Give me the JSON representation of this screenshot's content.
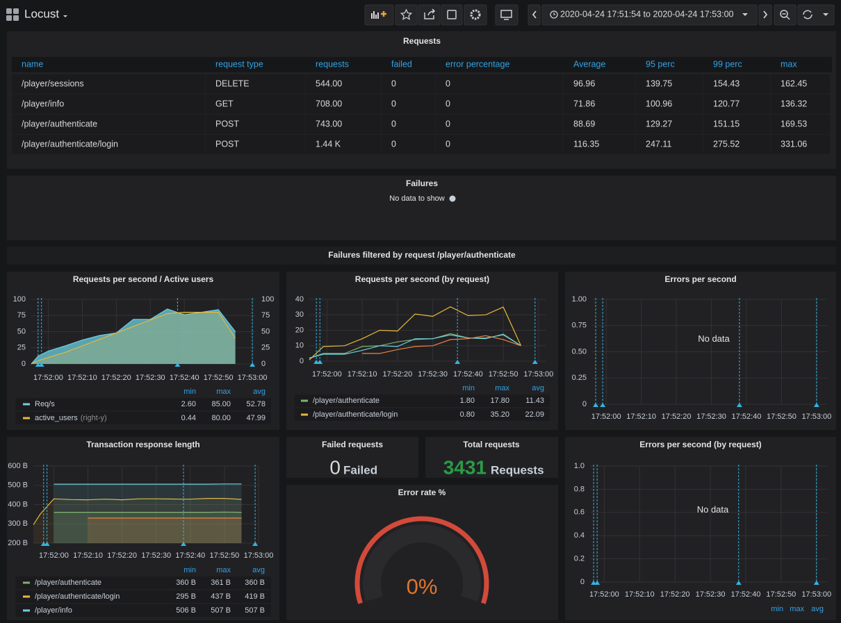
{
  "header": {
    "title": "Locust",
    "time_range": "2020-04-24 17:51:54 to 2020-04-24 17:53:00"
  },
  "requests": {
    "title": "Requests",
    "columns": [
      "name",
      "request type",
      "requests",
      "failed",
      "error percentage",
      "Average",
      "95 perc",
      "99 perc",
      "max"
    ],
    "rows": [
      [
        "/player/sessions",
        "DELETE",
        "544.00",
        "0",
        "0",
        "96.96",
        "139.75",
        "154.43",
        "162.45"
      ],
      [
        "/player/info",
        "GET",
        "708.00",
        "0",
        "0",
        "71.86",
        "100.96",
        "120.77",
        "136.32"
      ],
      [
        "/player/authenticate",
        "POST",
        "743.00",
        "0",
        "0",
        "88.69",
        "129.27",
        "151.15",
        "169.53"
      ],
      [
        "/player/authenticate/login",
        "POST",
        "1.44 K",
        "0",
        "0",
        "116.35",
        "247.11",
        "275.52",
        "331.06"
      ]
    ]
  },
  "failures": {
    "title": "Failures",
    "message": "No data to show"
  },
  "section": {
    "title": "Failures filtered by request /player/authenticate"
  },
  "charts": [
    {
      "type": "line",
      "title": "Requests per second / Active users",
      "x": [
        "17:51:55",
        "17:51:57",
        "17:52:00",
        "17:52:05",
        "17:52:10",
        "17:52:15",
        "17:52:20",
        "17:52:25",
        "17:52:30",
        "17:52:35",
        "17:52:40",
        "17:52:45",
        "17:52:50",
        "17:52:55"
      ],
      "xlim": [
        "17:51:55",
        "17:53:01"
      ],
      "xticks": [
        "17:52:00",
        "17:52:10",
        "17:52:20",
        "17:52:30",
        "17:52:40",
        "17:52:50",
        "17:53:00"
      ],
      "ylim": [
        0,
        100
      ],
      "yticks": [
        0,
        25,
        50,
        75,
        100
      ],
      "y2lim": [
        0,
        100
      ],
      "y2ticks": [
        0,
        25,
        50,
        75,
        100
      ],
      "grid": true,
      "annotations": [
        "17:51:57",
        "17:51:58",
        "17:52:38",
        "17:53:00"
      ],
      "legend_columns": [
        "min",
        "max",
        "avg"
      ],
      "series": [
        {
          "name": "Req/s",
          "color": "#6ed0e0",
          "fill_opacity": 0.75,
          "values": [
            0,
            12,
            20,
            28,
            37,
            44,
            48,
            69,
            69,
            85,
            76,
            80,
            84,
            50
          ],
          "stats": [
            "2.60",
            "85.00",
            "52.78"
          ]
        },
        {
          "name": "active_users",
          "axis": "y2",
          "axis_note": "(right-y)",
          "color": "#eab839",
          "fill_opacity": 0.2,
          "values": [
            0,
            5,
            10,
            18,
            28,
            38,
            48,
            58,
            68,
            78,
            80,
            80,
            80,
            40
          ],
          "stats": [
            "0.44",
            "80.00",
            "47.99"
          ]
        }
      ]
    },
    {
      "type": "line",
      "title": "Requests per second (by request)",
      "x": [
        "17:51:55",
        "17:51:59",
        "17:52:05",
        "17:52:10",
        "17:52:15",
        "17:52:20",
        "17:52:25",
        "17:52:30",
        "17:52:35",
        "17:52:40",
        "17:52:45",
        "17:52:50",
        "17:52:55"
      ],
      "xlim": [
        "17:51:55",
        "17:53:02"
      ],
      "xticks": [
        "17:52:00",
        "17:52:10",
        "17:52:20",
        "17:52:30",
        "17:52:40",
        "17:52:50",
        "17:53:00"
      ],
      "ylim": [
        0,
        40
      ],
      "yticks": [
        0,
        10,
        20,
        30,
        40
      ],
      "grid": true,
      "annotations": [
        "17:51:57",
        "17:51:58",
        "17:52:37",
        "17:52:59"
      ],
      "legend_columns": [
        "min",
        "max",
        "avg"
      ],
      "series": [
        {
          "name": "/player/authenticate",
          "color": "#7eb26d",
          "values": [
            1.8,
            5,
            5,
            9.5,
            10,
            12.5,
            14,
            14.5,
            17.8,
            15,
            15,
            17,
            10
          ],
          "stats": [
            "1.80",
            "17.80",
            "11.43"
          ]
        },
        {
          "name": "/player/authenticate/login",
          "color": "#eab839",
          "values": [
            0.8,
            9.5,
            10,
            14.5,
            20,
            19.5,
            30.5,
            29,
            35.2,
            29.5,
            30,
            35,
            10
          ],
          "stats": [
            "0.80",
            "35.20",
            "22.09"
          ]
        },
        {
          "color": "#6ed0e0",
          "values": [
            2,
            4.5,
            4.5,
            7,
            10,
            9.5,
            14.5,
            14.5,
            17,
            15,
            14.5,
            17.5,
            10
          ]
        },
        {
          "color": "#ef843c",
          "values": [
            null,
            null,
            null,
            5,
            5,
            7.5,
            9.5,
            10,
            14,
            14.5,
            16.5,
            14,
            10
          ]
        }
      ]
    },
    {
      "type": "line",
      "title": "Errors per second",
      "xlim": [
        "17:51:56",
        "17:53:03"
      ],
      "xticks": [
        "17:52:00",
        "17:52:10",
        "17:52:20",
        "17:52:30",
        "17:52:40",
        "17:52:50",
        "17:53:00"
      ],
      "ylim": [
        0,
        1
      ],
      "yticks": [
        0,
        0.25,
        {
          "value": 0.5,
          "label": "0.50"
        },
        0.75,
        {
          "value": 1,
          "label": "1.00"
        }
      ],
      "grid": true,
      "annotations": [
        "17:51:57",
        "17:51:59",
        "17:52:38",
        "17:53:00"
      ],
      "message": "No data"
    },
    {
      "type": "line",
      "title": "Transaction response length",
      "x": [
        "17:51:54",
        "17:51:56",
        "17:52:00",
        "17:52:05",
        "17:52:10",
        "17:52:15",
        "17:52:20",
        "17:52:25",
        "17:52:30",
        "17:52:35",
        "17:52:40",
        "17:52:45",
        "17:52:50",
        "17:52:55"
      ],
      "xlim": [
        "17:51:54",
        "17:53:00"
      ],
      "xticks": [
        "17:52:00",
        "17:52:10",
        "17:52:20",
        "17:52:30",
        "17:52:40",
        "17:52:50",
        "17:53:00"
      ],
      "ylim": [
        200,
        600
      ],
      "yticks": [
        {
          "value": 200,
          "label": "200 B"
        },
        {
          "value": 300,
          "label": "300 B"
        },
        {
          "value": 400,
          "label": "400 B"
        },
        {
          "value": 500,
          "label": "500 B"
        },
        {
          "value": 600,
          "label": "600 B"
        }
      ],
      "grid": true,
      "annotations": [
        "17:51:57",
        "17:51:58",
        "17:52:38",
        "17:52:59"
      ],
      "legend_columns": [
        "min",
        "max",
        "avg"
      ],
      "series": [
        {
          "name": "/player/authenticate",
          "color": "#7eb26d",
          "fill_opacity": 0.15,
          "values": [
            null,
            null,
            360,
            360,
            360,
            360,
            360,
            360,
            360,
            360,
            360,
            360,
            361,
            360
          ],
          "stats": [
            "360 B",
            "361 B",
            "360 B"
          ]
        },
        {
          "name": "/player/authenticate/login",
          "color": "#eab839",
          "fill_opacity": 0.08,
          "values": [
            295,
            350,
            430,
            426,
            425,
            428,
            425,
            430,
            430,
            429,
            428,
            432,
            432,
            427
          ],
          "stats": [
            "295 B",
            "437 B",
            "419 B"
          ]
        },
        {
          "name": "/player/info",
          "color": "#6ed0e0",
          "fill_opacity": 0.12,
          "values": [
            null,
            null,
            506,
            506,
            506,
            506,
            506,
            506,
            506,
            506,
            506,
            506,
            507,
            507
          ],
          "stats": [
            "506 B",
            "507 B",
            "507 B"
          ]
        },
        {
          "color": "#ef843c",
          "fill_opacity": 0.15,
          "values": [
            null,
            null,
            null,
            null,
            330,
            330,
            330,
            330,
            330,
            330,
            330,
            330,
            330,
            330
          ]
        }
      ]
    },
    {
      "type": "line",
      "title": "Errors per second (by request)",
      "xlim": [
        "17:51:56",
        "17:53:03"
      ],
      "xticks": [
        "17:52:00",
        "17:52:10",
        "17:52:20",
        "17:52:30",
        "17:52:40",
        "17:52:50",
        "17:53:00"
      ],
      "ylim": [
        0,
        1
      ],
      "yticks": [
        0,
        0.2,
        0.4,
        0.6,
        0.8,
        {
          "value": 1,
          "label": "1.0"
        }
      ],
      "grid": true,
      "annotations": [
        "17:51:57",
        "17:51:58",
        "17:52:38",
        "17:53:00"
      ],
      "legend_columns": [
        "min",
        "max",
        "avg"
      ],
      "message": "No data"
    }
  ],
  "stats": [
    {
      "title": "Failed requests",
      "value": 0,
      "unit": "Failed",
      "color": "#d8d9da"
    },
    {
      "title": "Total requests",
      "value": 3431,
      "unit": "Requests",
      "color": "#299c46"
    }
  ],
  "gauge": {
    "title": "Error rate %",
    "value": 0,
    "value_label": "0%",
    "color": "#e0752d",
    "threshold_color": "#d44a3a"
  }
}
